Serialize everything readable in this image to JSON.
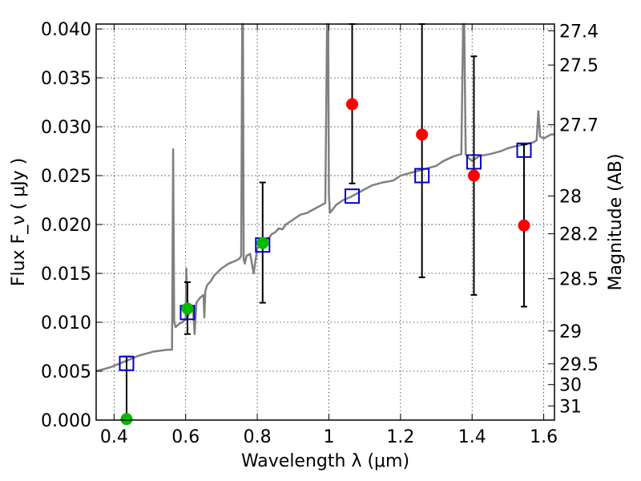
{
  "chart_data": {
    "type": "scatter",
    "title": "",
    "xlabel": "Wavelength  λ (μm)",
    "ylabel": "Flux  F_ν  ( μJy )",
    "ylabel_right": "Magnitude (AB)",
    "xlim": [
      0.35,
      1.63
    ],
    "ylim": [
      0.0,
      0.0405
    ],
    "x_ticks": [
      0.4,
      0.6,
      0.8,
      1.0,
      1.2,
      1.4,
      1.6
    ],
    "x_tick_labels": [
      "0.4",
      "0.6",
      "0.8",
      "1",
      "1.2",
      "1.4",
      "1.6"
    ],
    "y_ticks": [
      0.0,
      0.005,
      0.01,
      0.015,
      0.02,
      0.025,
      0.03,
      0.035,
      0.04
    ],
    "y_tick_labels": [
      "0.000",
      "0.005",
      "0.010",
      "0.015",
      "0.020",
      "0.025",
      "0.030",
      "0.035",
      "0.040"
    ],
    "right_ticks": [
      {
        "mag": 27.4,
        "label": "27.4"
      },
      {
        "mag": 27.5,
        "label": "27.5"
      },
      {
        "mag": 27.7,
        "label": "27.7"
      },
      {
        "mag": 28.0,
        "label": "28"
      },
      {
        "mag": 28.2,
        "label": "28.2"
      },
      {
        "mag": 28.5,
        "label": "28.5"
      },
      {
        "mag": 29.0,
        "label": "29"
      },
      {
        "mag": 29.5,
        "label": "29.5"
      },
      {
        "mag": 30.0,
        "label": "30"
      },
      {
        "mag": 31.0,
        "label": "31"
      }
    ],
    "grid": true,
    "colors": {
      "spectrum": "#808080",
      "model_box": "#0000cc",
      "detection": "#ff0000",
      "optical": "#00bb00",
      "errorbar": "#000000"
    },
    "spectrum": {
      "name": "",
      "x": [
        0.35,
        0.37,
        0.39,
        0.41,
        0.43,
        0.45,
        0.47,
        0.49,
        0.51,
        0.53,
        0.55,
        0.562,
        0.565,
        0.568,
        0.572,
        0.58,
        0.59,
        0.6,
        0.602,
        0.605,
        0.61,
        0.62,
        0.625,
        0.63,
        0.64,
        0.65,
        0.652,
        0.655,
        0.66,
        0.67,
        0.68,
        0.7,
        0.72,
        0.74,
        0.75,
        0.755,
        0.758,
        0.76,
        0.762,
        0.765,
        0.77,
        0.78,
        0.79,
        0.8,
        0.81,
        0.82,
        0.83,
        0.84,
        0.85,
        0.86,
        0.87,
        0.88,
        0.9,
        0.92,
        0.94,
        0.96,
        0.98,
        0.99,
        0.995,
        0.998,
        1.0,
        1.003,
        1.01,
        1.02,
        1.04,
        1.06,
        1.08,
        1.1,
        1.12,
        1.15,
        1.18,
        1.2,
        1.22,
        1.25,
        1.28,
        1.3,
        1.32,
        1.35,
        1.37,
        1.375,
        1.378,
        1.382,
        1.39,
        1.4,
        1.42,
        1.45,
        1.48,
        1.5,
        1.52,
        1.55,
        1.57,
        1.58,
        1.585,
        1.59,
        1.6,
        1.62,
        1.63
      ],
      "values": [
        0.005,
        0.0052,
        0.0054,
        0.0057,
        0.006,
        0.0063,
        0.0066,
        0.0068,
        0.007,
        0.0071,
        0.0072,
        0.0072,
        0.0277,
        0.01,
        0.0095,
        0.0098,
        0.01,
        0.0103,
        0.0155,
        0.0105,
        0.011,
        0.0115,
        0.0088,
        0.012,
        0.0125,
        0.0128,
        0.0105,
        0.0132,
        0.0138,
        0.0142,
        0.0148,
        0.0155,
        0.016,
        0.0163,
        0.0165,
        0.0168,
        0.0405,
        0.0405,
        0.0165,
        0.016,
        0.0168,
        0.017,
        0.015,
        0.0176,
        0.0178,
        0.0182,
        0.0185,
        0.019,
        0.0192,
        0.0196,
        0.0195,
        0.02,
        0.0205,
        0.021,
        0.0212,
        0.0216,
        0.022,
        0.0222,
        0.0405,
        0.0405,
        0.023,
        0.0212,
        0.0215,
        0.022,
        0.0225,
        0.0228,
        0.0232,
        0.0236,
        0.024,
        0.0243,
        0.0245,
        0.025,
        0.0252,
        0.0255,
        0.0258,
        0.026,
        0.0265,
        0.027,
        0.0272,
        0.0405,
        0.0405,
        0.0272,
        0.0268,
        0.0265,
        0.027,
        0.0272,
        0.0275,
        0.0278,
        0.028,
        0.0282,
        0.0284,
        0.0286,
        0.0316,
        0.029,
        0.0288,
        0.0292,
        0.0292
      ]
    },
    "model_points": {
      "name": "",
      "x": [
        0.435,
        0.605,
        0.815,
        1.065,
        1.26,
        1.405,
        1.545
      ],
      "y": [
        0.0058,
        0.011,
        0.0179,
        0.0229,
        0.025,
        0.0264,
        0.0276
      ]
    },
    "optical_points": {
      "name": "",
      "x": [
        0.435,
        0.605,
        0.815
      ],
      "y": [
        0.0001,
        0.0114,
        0.0181
      ],
      "yerr_low": [
        0.0001,
        0.0026,
        0.0061
      ],
      "yerr_high": [
        0.0064,
        0.0027,
        0.0062
      ]
    },
    "detection_points": {
      "name": "",
      "x": [
        1.065,
        1.26,
        1.405,
        1.545
      ],
      "y": [
        0.0323,
        0.0292,
        0.025,
        0.0199
      ],
      "yerr_low": [
        0.0081,
        0.0146,
        0.0122,
        0.0083
      ],
      "yerr_high": [
        0.0082,
        0.0113,
        0.0122,
        0.0083
      ]
    }
  }
}
